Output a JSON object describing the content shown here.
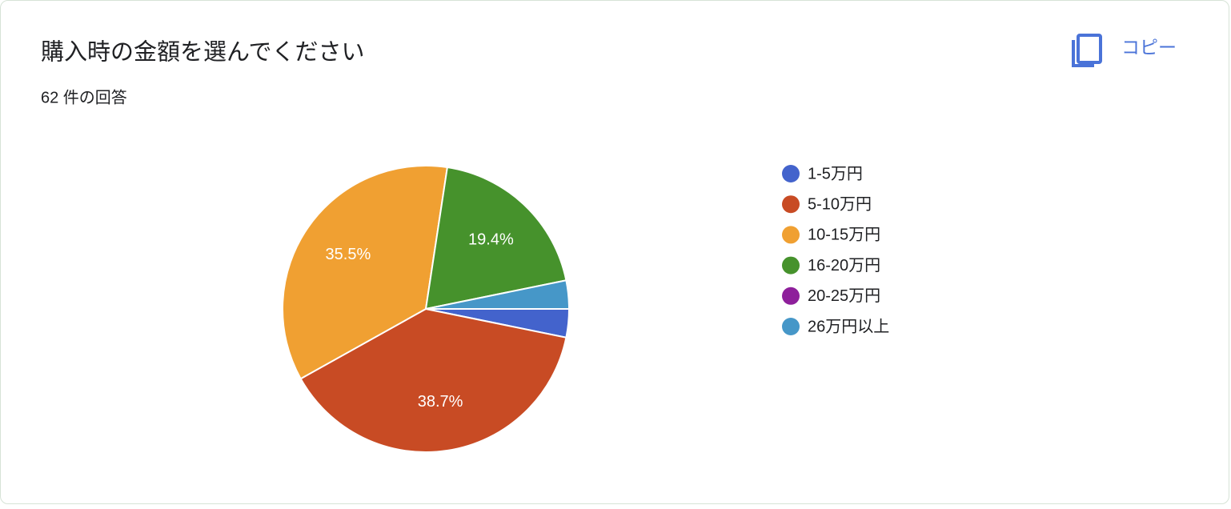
{
  "chart_data": {
    "type": "pie",
    "title": "購入時の金額を選んでください",
    "subtitle": "62 件の回答",
    "categories": [
      "1-5万円",
      "5-10万円",
      "10-15万円",
      "16-20万円",
      "20-25万円",
      "26万円以上"
    ],
    "values": [
      3.2,
      38.7,
      35.5,
      19.4,
      0,
      3.2
    ],
    "value_labels": [
      null,
      "38.7%",
      "35.5%",
      "19.4%",
      null,
      null
    ],
    "colors": [
      "#4363cc",
      "#c84b24",
      "#f0a032",
      "#46922c",
      "#8e1f9b",
      "#4697c8"
    ],
    "legend": "right"
  },
  "copy_button": "コピー"
}
